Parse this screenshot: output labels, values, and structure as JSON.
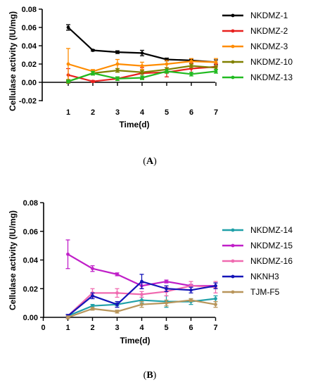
{
  "chart_data": [
    {
      "type": "line",
      "panel_label": "(A)",
      "panel_letter": "A",
      "xlabel": "Time(d)",
      "ylabel": "Cellulase activity (IU/mg)",
      "xlim": [
        1,
        7
      ],
      "ylim": [
        -0.02,
        0.08
      ],
      "x_ticks": [
        "1",
        "2",
        "3",
        "4",
        "5",
        "6",
        "7"
      ],
      "y_ticks": [
        "-0.02",
        "0.00",
        "0.02",
        "0.04",
        "0.06",
        "0.08"
      ],
      "legend_placement": "right",
      "x": [
        1,
        2,
        3,
        4,
        5,
        6,
        7
      ],
      "series": [
        {
          "name": "NKDMZ-1",
          "color": "#000000",
          "values": [
            0.06,
            0.035,
            0.033,
            0.032,
            0.025,
            0.024,
            0.022
          ],
          "errors": [
            0.003,
            0.0008,
            0.0015,
            0.003,
            0.0015,
            0.0015,
            0.0025
          ]
        },
        {
          "name": "NKDMZ-2",
          "color": "#e8201e",
          "values": [
            0.008,
            0.001,
            0.004,
            0.01,
            0.011,
            0.015,
            0.017
          ],
          "errors": [
            0.007,
            0.001,
            0.002,
            0.006,
            0.005,
            0.006,
            0.003
          ]
        },
        {
          "name": "NKDMZ-3",
          "color": "#ff8c00",
          "values": [
            0.02,
            0.012,
            0.02,
            0.018,
            0.02,
            0.023,
            0.022
          ],
          "errors": [
            0.017,
            0.002,
            0.005,
            0.004,
            0.004,
            0.003,
            0.004
          ]
        },
        {
          "name": "NKDMZ-10",
          "color": "#808000",
          "values": [
            0.001,
            0.01,
            0.013,
            0.011,
            0.014,
            0.018,
            0.016
          ],
          "errors": [
            0.002,
            0.002,
            0.002,
            0.002,
            0.002,
            0.002,
            0.002
          ]
        },
        {
          "name": "NKDMZ-13",
          "color": "#22bb22",
          "values": [
            0.001,
            0.01,
            0.004,
            0.005,
            0.012,
            0.009,
            0.012
          ],
          "errors": [
            0.001,
            0.002,
            0.002,
            0.002,
            0.002,
            0.002,
            0.002
          ]
        }
      ]
    },
    {
      "type": "line",
      "panel_label": "(B)",
      "panel_letter": "B",
      "xlabel": "Time(d)",
      "ylabel": "Cellulase activity (IU/mg)",
      "xlim": [
        0,
        7
      ],
      "ylim": [
        0,
        0.08
      ],
      "x_ticks": [
        "0",
        "1",
        "2",
        "3",
        "4",
        "5",
        "6",
        "7"
      ],
      "y_ticks": [
        "0.00",
        "0.02",
        "0.04",
        "0.06",
        "0.08"
      ],
      "legend_placement": "right",
      "x": [
        1,
        2,
        3,
        4,
        5,
        6,
        7
      ],
      "series": [
        {
          "name": "NKDMZ-14",
          "color": "#1fa0a8",
          "values": [
            0.001,
            0.008,
            0.009,
            0.012,
            0.011,
            0.011,
            0.013
          ],
          "errors": [
            0.001,
            0.001,
            0.001,
            0.002,
            0.004,
            0.002,
            0.002
          ]
        },
        {
          "name": "NKDMZ-15",
          "color": "#c01fc8",
          "values": [
            0.044,
            0.034,
            0.03,
            0.022,
            0.025,
            0.022,
            0.022
          ],
          "errors": [
            0.01,
            0.002,
            0.001,
            0.002,
            0.001,
            0.001,
            0.002
          ]
        },
        {
          "name": "NKDMZ-16",
          "color": "#f06ab0",
          "values": [
            0.001,
            0.017,
            0.017,
            0.016,
            0.018,
            0.022,
            0.021
          ],
          "errors": [
            0.001,
            0.003,
            0.003,
            0.002,
            0.003,
            0.003,
            0.004
          ]
        },
        {
          "name": "NKNH3",
          "color": "#1414b8",
          "values": [
            0.001,
            0.015,
            0.009,
            0.025,
            0.02,
            0.019,
            0.022
          ],
          "errors": [
            0.001,
            0.002,
            0.002,
            0.005,
            0.002,
            0.002,
            0.002
          ]
        },
        {
          "name": "TJM-F5",
          "color": "#b8955a",
          "values": [
            0.0,
            0.006,
            0.004,
            0.009,
            0.01,
            0.012,
            0.009
          ],
          "errors": [
            0.001,
            0.001,
            0.001,
            0.002,
            0.002,
            0.001,
            0.002
          ]
        }
      ]
    }
  ]
}
